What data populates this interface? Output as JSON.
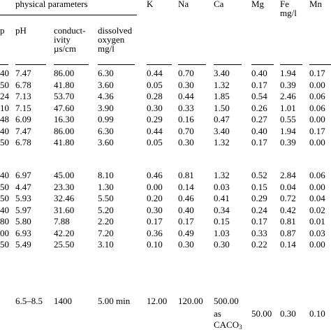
{
  "header": {
    "group": "physical parameters",
    "temp_partial": "p",
    "ph": "pH",
    "conductivity": [
      "conduct-",
      "ivity",
      "µs/cm"
    ],
    "dissolved_oxygen": [
      "dissolved",
      "oxygen",
      "mg/l"
    ],
    "k": "K",
    "na": "Na",
    "ca": "Ca",
    "mg": "Mg",
    "fe": [
      "Fe",
      "mg/l"
    ],
    "mn": "Mn"
  },
  "groups": [
    {
      "rows": [
        {
          "temp": "40",
          "ph": "7.47",
          "cond": "86.00",
          "do": "6.30",
          "k": "0.44",
          "na": "0.70",
          "ca": "3.40",
          "mg": "0.40",
          "fe": "1.94",
          "mn": "0.17"
        },
        {
          "temp": "50",
          "ph": "6.78",
          "cond": "41.80",
          "do": "3.60",
          "k": "0.05",
          "na": "0.30",
          "ca": "1.32",
          "mg": "0.17",
          "fe": "0.39",
          "mn": "0.00"
        },
        {
          "temp": "24",
          "ph": "7.13",
          "cond": "53.70",
          "do": "4.36",
          "k": "0.28",
          "na": "0.44",
          "ca": "1.85",
          "mg": "0.54",
          "fe": "2.46",
          "mn": "0.06"
        },
        {
          "temp": "10",
          "ph": "7.15",
          "cond": "47.60",
          "do": "3.90",
          "k": "0.30",
          "na": "0.33",
          "ca": "1.50",
          "mg": "0.26",
          "fe": "1.01",
          "mn": "0.06"
        },
        {
          "temp": "48",
          "ph": "6.09",
          "cond": "16.30",
          "do": "0.99",
          "k": "0.29",
          "na": "0.16",
          "ca": "0.47",
          "mg": "0.27",
          "fe": "0.55",
          "mn": "0.00"
        },
        {
          "temp": "40",
          "ph": "7.47",
          "cond": "86.00",
          "do": "6.30",
          "k": "0.44",
          "na": "0.70",
          "ca": "3.40",
          "mg": "0.40",
          "fe": "1.94",
          "mn": "0.17"
        },
        {
          "temp": "50",
          "ph": "6.78",
          "cond": "41.80",
          "do": "3.60",
          "k": "0.05",
          "na": "0.30",
          "ca": "1.32",
          "mg": "0.17",
          "fe": "0.39",
          "mn": "0.00"
        }
      ]
    },
    {
      "rows": [
        {
          "temp": "40",
          "ph": "6.97",
          "cond": "45.00",
          "do": "8.10",
          "k": "0.46",
          "na": "0.81",
          "ca": "1.32",
          "mg": "0.52",
          "fe": "2.84",
          "mn": "0.06"
        },
        {
          "temp": "50",
          "ph": "4.47",
          "cond": "23.30",
          "do": "1.30",
          "k": "0.00",
          "na": "0.14",
          "ca": "0.03",
          "mg": "0.15",
          "fe": "0.04",
          "mn": "0.00"
        },
        {
          "temp": "50",
          "ph": "5.93",
          "cond": "32.46",
          "do": "5.50",
          "k": "0.20",
          "na": "0.46",
          "ca": "0.41",
          "mg": "0.29",
          "fe": "0.72",
          "mn": "0.04"
        },
        {
          "temp": "40",
          "ph": "5.97",
          "cond": "31.60",
          "do": "5.20",
          "k": "0.30",
          "na": "0.40",
          "ca": "0.34",
          "mg": "0.24",
          "fe": "0.42",
          "mn": "0.02"
        },
        {
          "temp": "80",
          "ph": "5.80",
          "cond": "7.88",
          "do": "2.20",
          "k": "0.17",
          "na": "0.17",
          "ca": "0.15",
          "mg": "0.17",
          "fe": "0.81",
          "mn": "0.01"
        },
        {
          "temp": "00",
          "ph": "6.93",
          "cond": "42.20",
          "do": "7.20",
          "k": "0.36",
          "na": "0.49",
          "ca": "1.03",
          "mg": "0.33",
          "fe": "0.87",
          "mn": "0.03"
        },
        {
          "temp": "50",
          "ph": "5.49",
          "cond": "25.50",
          "do": "3.10",
          "k": "0.10",
          "na": "0.30",
          "ca": "0.30",
          "mg": "0.22",
          "fe": "0.14",
          "mn": "0.00"
        }
      ]
    }
  ],
  "standard": {
    "ph": "6.5–8.5",
    "cond": "1400",
    "do": "5.00 min",
    "k": "12.00",
    "na": "120.00",
    "ca": [
      "500.00",
      "as",
      "CACO",
      "3"
    ],
    "mg": "50.00",
    "fe": "0.30",
    "mn": "0.10"
  }
}
